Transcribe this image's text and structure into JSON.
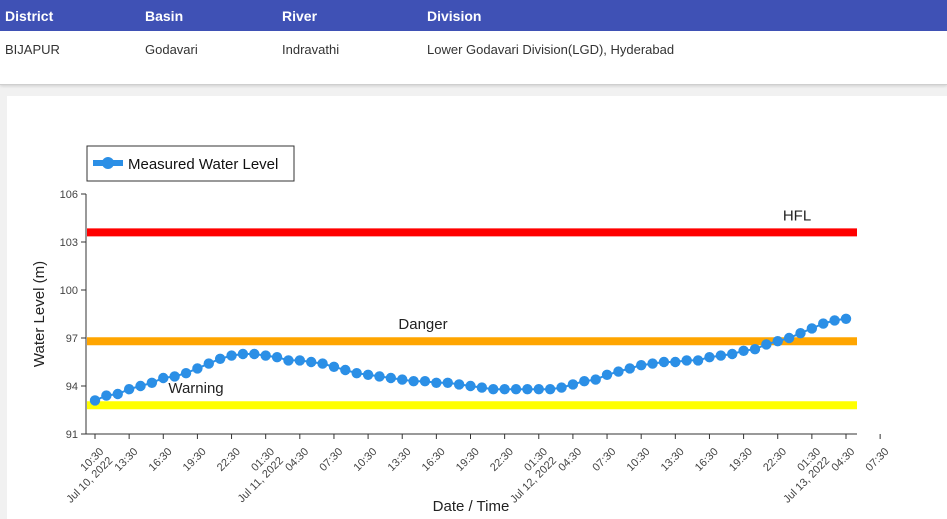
{
  "info": {
    "headers": [
      "District",
      "Basin",
      "River",
      "Division"
    ],
    "values": [
      "BIJAPUR",
      "Godavari",
      "Indravathi",
      "Lower Godavari Division(LGD), Hyderabad"
    ]
  },
  "chart_data": {
    "type": "line",
    "ylabel": "Water Level (m)",
    "xlabel": "Date / Time",
    "ylim": [
      91,
      106
    ],
    "yticks": [
      91,
      94,
      97,
      100,
      103,
      106
    ],
    "legend": {
      "position": "top-left",
      "entries": [
        "Measured Water Level"
      ]
    },
    "grid": false,
    "series": [
      {
        "name": "Measured Water Level",
        "color": "#2b8fe6",
        "start": "Jul 10, 2022 10:30",
        "interval_hours": 1,
        "values": [
          93.1,
          93.4,
          93.5,
          93.8,
          94.0,
          94.2,
          94.5,
          94.6,
          94.8,
          95.1,
          95.4,
          95.7,
          95.9,
          96.0,
          96.0,
          95.9,
          95.8,
          95.6,
          95.6,
          95.5,
          95.4,
          95.2,
          95.0,
          94.8,
          94.7,
          94.6,
          94.5,
          94.4,
          94.3,
          94.3,
          94.2,
          94.2,
          94.1,
          94.0,
          93.9,
          93.8,
          93.8,
          93.8,
          93.8,
          93.8,
          93.8,
          93.9,
          94.1,
          94.3,
          94.4,
          94.7,
          94.9,
          95.1,
          95.3,
          95.4,
          95.5,
          95.5,
          95.6,
          95.6,
          95.8,
          95.9,
          96.0,
          96.2,
          96.3,
          96.6,
          96.8,
          97.0,
          97.3,
          97.6,
          97.9,
          98.1,
          98.2
        ]
      }
    ],
    "reference_lines": [
      {
        "label": "HFL",
        "value": 103.6,
        "color": "#ff0000"
      },
      {
        "label": "Danger",
        "value": 96.8,
        "color": "#ffa500"
      },
      {
        "label": "Warning",
        "value": 92.8,
        "color": "#ffff00"
      }
    ],
    "x_tick_labels": [
      "10:30\nJul 10, 2022",
      "13:30",
      "16:30",
      "19:30",
      "22:30",
      "01:30\nJul 11, 2022",
      "04:30",
      "07:30",
      "10:30",
      "13:30",
      "16:30",
      "19:30",
      "22:30",
      "01:30\nJul 12, 2022",
      "04:30",
      "07:30",
      "10:30",
      "13:30",
      "16:30",
      "19:30",
      "22:30",
      "01:30\nJul 13, 2022",
      "04:30",
      "07:30"
    ]
  }
}
